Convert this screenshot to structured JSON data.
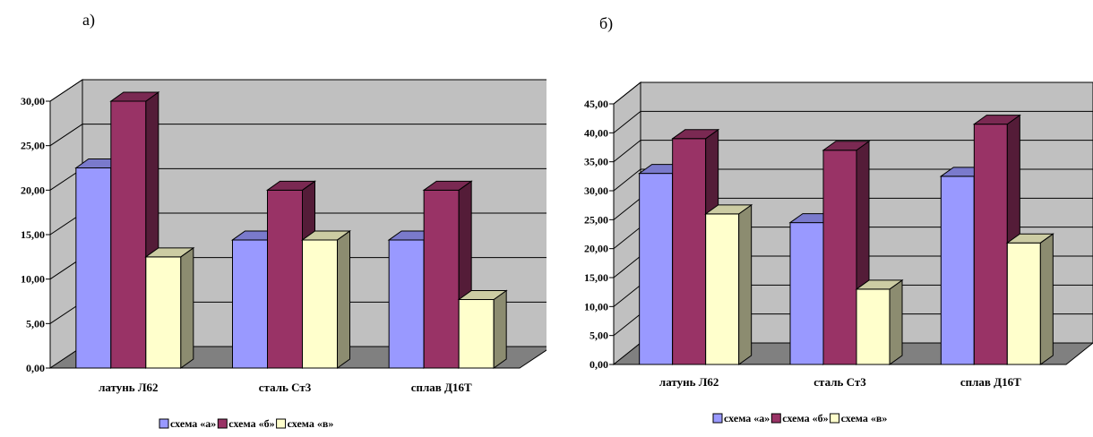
{
  "chart_data": [
    {
      "panel_label": "а)",
      "type": "bar",
      "style": "3d-clustered",
      "categories": [
        "латунь Л62",
        "сталь Ст3",
        "сплав Д16Т"
      ],
      "series": [
        {
          "name": "схема «а»",
          "color": "#9999FF",
          "values": [
            22.5,
            14.4,
            14.4
          ]
        },
        {
          "name": "схема «б»",
          "color": "#993366",
          "values": [
            30.0,
            20.0,
            20.0
          ]
        },
        {
          "name": "схема «в»",
          "color": "#FFFFCC",
          "values": [
            12.5,
            14.4,
            7.7
          ]
        }
      ],
      "ylim": [
        0,
        30
      ],
      "yticks": [
        "0,00",
        "5,00",
        "10,00",
        "15,00",
        "20,00",
        "25,00",
        "30,00"
      ],
      "grid": true,
      "legend": "bottom"
    },
    {
      "panel_label": "б)",
      "type": "bar",
      "style": "3d-clustered",
      "categories": [
        "латунь Л62",
        "сталь Ст3",
        "сплав Д16Т"
      ],
      "series": [
        {
          "name": "схема «а»",
          "color": "#9999FF",
          "values": [
            33.0,
            24.5,
            32.5
          ]
        },
        {
          "name": "схема «б»",
          "color": "#993366",
          "values": [
            39.0,
            37.0,
            41.5
          ]
        },
        {
          "name": "схема «в»",
          "color": "#FFFFCC",
          "values": [
            26.0,
            13.0,
            21.0
          ]
        }
      ],
      "ylim": [
        0,
        45
      ],
      "yticks": [
        "0,00",
        "5,00",
        "10,00",
        "15,00",
        "20,00",
        "25,00",
        "30,00",
        "35,00",
        "40,00",
        "45,00"
      ],
      "grid": true,
      "legend": "bottom"
    }
  ]
}
